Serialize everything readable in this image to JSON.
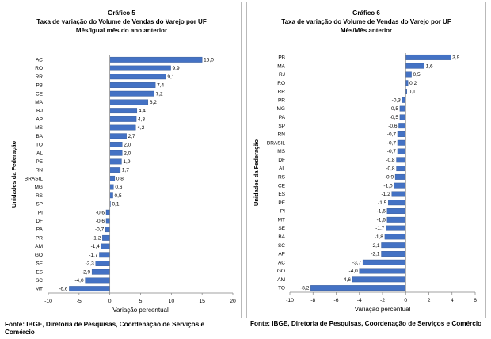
{
  "source_text": "Fonte: IBGE, Diretoria de Pesquisas, Coordenação de Serviços e Comércio",
  "bar_color": "#4472c4",
  "bar_stroke": "#2f528f",
  "chart_data": [
    {
      "type": "bar",
      "orientation": "horizontal",
      "figure": "Gráfico 5",
      "title": "Taxa de variação do Volume de Vendas do Varejo por UF",
      "subtitle": "Mês/Igual mês do ano anterior",
      "ylabel": "Unidades da Federação",
      "xlabel": "Variação percentual",
      "xlim": [
        -10,
        20
      ],
      "xticks": [
        -10,
        -5,
        0,
        5,
        10,
        15,
        20
      ],
      "categories": [
        "AC",
        "RO",
        "RR",
        "PB",
        "CE",
        "MA",
        "RJ",
        "AP",
        "MS",
        "BA",
        "TO",
        "AL",
        "PE",
        "RN",
        "BRASIL",
        "MG",
        "RS",
        "SP",
        "PI",
        "DF",
        "PA",
        "PR",
        "AM",
        "GO",
        "SE",
        "ES",
        "SC",
        "MT"
      ],
      "values": [
        15.0,
        9.9,
        9.1,
        7.4,
        7.2,
        6.2,
        4.4,
        4.3,
        4.2,
        2.7,
        2.0,
        2.0,
        1.9,
        1.7,
        0.8,
        0.6,
        0.5,
        0.1,
        -0.6,
        -0.6,
        -0.7,
        -1.2,
        -1.4,
        -1.7,
        -2.3,
        -2.9,
        -4.0,
        -6.6
      ],
      "labels": [
        "15,0",
        "9,9",
        "9,1",
        "7,4",
        "7,2",
        "6,2",
        "4,4",
        "4,3",
        "4,2",
        "2,7",
        "2,0",
        "2,0",
        "1,9",
        "1,7",
        "0,8",
        "0,6",
        "0,5",
        "0,1",
        "-0,6",
        "-0,6",
        "-0,7",
        "-1,2",
        "-1,4",
        "-1,7",
        "-2,3",
        "-2,9",
        "-4,0",
        "-6,6"
      ],
      "grid": false,
      "legend": "none"
    },
    {
      "type": "bar",
      "orientation": "horizontal",
      "figure": "Gráfico 6",
      "title": "Taxa de variação do Volume de Vendas do Varejo por UF",
      "subtitle": "Mês/Mês anterior",
      "ylabel": "Unidades da Federação",
      "xlabel": "Variação percentual",
      "xlim": [
        -10,
        6
      ],
      "xticks": [
        -10,
        -8,
        -6,
        -4,
        -2,
        0,
        2,
        4,
        6
      ],
      "categories": [
        "PB",
        "MA",
        "RJ",
        "RO",
        "RR",
        "PR",
        "MG",
        "PA",
        "SP",
        "RN",
        "BRASIL",
        "MS",
        "DF",
        "AL",
        "RS",
        "CE",
        "ES",
        "PE",
        "PI",
        "MT",
        "SE",
        "BA",
        "SC",
        "AP",
        "AC",
        "GO",
        "AM",
        "TO"
      ],
      "values": [
        3.9,
        1.6,
        0.5,
        0.2,
        0.1,
        -0.3,
        -0.5,
        -0.5,
        -0.6,
        -0.7,
        -0.7,
        -0.7,
        -0.8,
        -0.8,
        -0.9,
        -1.0,
        -1.2,
        -1.5,
        -1.6,
        -1.6,
        -1.7,
        -1.8,
        -2.1,
        -2.1,
        -3.7,
        -4.0,
        -4.6,
        -8.2
      ],
      "labels": [
        "3,9",
        "1,6",
        "0,5",
        "0,2",
        "0,1",
        "-0,3",
        "-0,5",
        "-0,5",
        "-0,6",
        "-0,7",
        "-0,7",
        "-0,7",
        "-0,8",
        "-0,8",
        "-0,9",
        "-1,0",
        "-1,2",
        "-1,5",
        "-1,6",
        "-1,6",
        "-1,7",
        "-1,8",
        "-2,1",
        "-2,1",
        "-3,7",
        "-4,0",
        "-4,6",
        "-8,2"
      ],
      "grid": false,
      "legend": "none"
    }
  ]
}
